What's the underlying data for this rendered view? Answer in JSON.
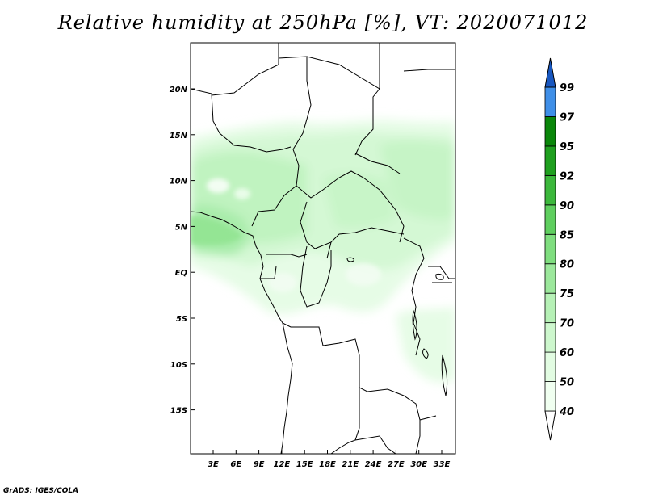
{
  "title": "Relative humidity at 250hPa [%], VT: 2020071012",
  "footer": "GrADS: IGES/COLA",
  "map": {
    "variable": "Relative humidity",
    "level": "250hPa",
    "units": "%",
    "valid_time": "2020071012",
    "lat_labels": [
      "20N",
      "15N",
      "10N",
      "5N",
      "EQ",
      "5S",
      "10S",
      "15S"
    ],
    "lon_labels": [
      "3E",
      "6E",
      "9E",
      "12E",
      "15E",
      "18E",
      "21E",
      "24E",
      "27E",
      "30E",
      "33E"
    ]
  },
  "colorbar": {
    "levels": [
      "40",
      "50",
      "60",
      "70",
      "75",
      "80",
      "85",
      "90",
      "92",
      "95",
      "97",
      "99"
    ],
    "colors": [
      "#f0fff0",
      "#e2fce2",
      "#cdf7cd",
      "#b6f1b6",
      "#9ce89c",
      "#7fde7f",
      "#5fcf5f",
      "#3cb83c",
      "#1fa01f",
      "#0a870a",
      "#3f8fe8",
      "#2770d6",
      "#1857c0"
    ],
    "bottom_color": "#ffffff",
    "top_color": "#1857c0"
  },
  "colors": {
    "background": "#ffffff",
    "border": "#000000"
  }
}
